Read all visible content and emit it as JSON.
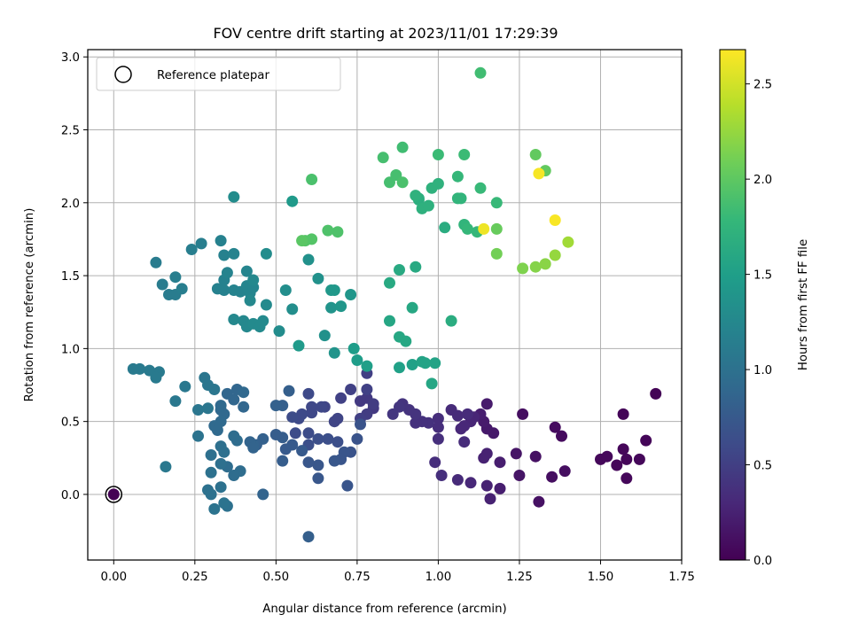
{
  "chart_data": {
    "type": "scatter",
    "title": "FOV centre drift starting at 2023/11/01 17:29:39",
    "xlabel": "Angular distance from reference (arcmin)",
    "ylabel": "Rotation from reference (arcmin)",
    "xlim": [
      -0.08,
      1.75
    ],
    "ylim": [
      -0.45,
      3.05
    ],
    "xticks": [
      0.0,
      0.25,
      0.5,
      0.75,
      1.0,
      1.25,
      1.5,
      1.75
    ],
    "xtick_labels": [
      "0.00",
      "0.25",
      "0.50",
      "0.75",
      "1.00",
      "1.25",
      "1.50",
      "1.75"
    ],
    "yticks": [
      0.0,
      0.5,
      1.0,
      1.5,
      2.0,
      2.5,
      3.0
    ],
    "ytick_labels": [
      "0.0",
      "0.5",
      "1.0",
      "1.5",
      "2.0",
      "2.5",
      "3.0"
    ],
    "grid": true,
    "legend": {
      "position": "top-left",
      "entries": [
        "Reference platepar"
      ]
    },
    "reference_point": {
      "x": 0.0,
      "y": 0.0,
      "label": "Reference platepar"
    },
    "colorbar": {
      "label": "Hours from first FF file",
      "range": [
        0.0,
        2.68
      ],
      "ticks": [
        0.0,
        0.5,
        1.0,
        1.5,
        2.0,
        2.5
      ],
      "tick_labels": [
        "0.0",
        "0.5",
        "1.0",
        "1.5",
        "2.0",
        "2.5"
      ],
      "colormap": "viridis"
    },
    "points": [
      [
        0.0,
        0.0,
        0.0
      ],
      [
        1.67,
        0.69,
        0.02
      ],
      [
        1.57,
        0.55,
        0.03
      ],
      [
        1.64,
        0.37,
        0.03
      ],
      [
        1.57,
        0.31,
        0.04
      ],
      [
        1.55,
        0.2,
        0.04
      ],
      [
        1.58,
        0.24,
        0.04
      ],
      [
        1.62,
        0.24,
        0.05
      ],
      [
        1.5,
        0.24,
        0.05
      ],
      [
        1.52,
        0.26,
        0.05
      ],
      [
        1.58,
        0.11,
        0.05
      ],
      [
        1.36,
        0.46,
        0.08
      ],
      [
        1.38,
        0.4,
        0.08
      ],
      [
        1.26,
        0.55,
        0.1
      ],
      [
        1.39,
        0.16,
        0.1
      ],
      [
        1.35,
        0.12,
        0.1
      ],
      [
        1.3,
        0.26,
        0.12
      ],
      [
        1.31,
        -0.05,
        0.12
      ],
      [
        1.24,
        0.28,
        0.15
      ],
      [
        1.25,
        0.13,
        0.15
      ],
      [
        1.17,
        0.42,
        0.18
      ],
      [
        1.15,
        0.45,
        0.18
      ],
      [
        1.14,
        0.5,
        0.2
      ],
      [
        1.15,
        0.62,
        0.2
      ],
      [
        1.13,
        0.55,
        0.22
      ],
      [
        1.19,
        0.22,
        0.22
      ],
      [
        1.19,
        0.04,
        0.22
      ],
      [
        1.14,
        0.25,
        0.25
      ],
      [
        1.15,
        0.28,
        0.25
      ],
      [
        1.15,
        0.06,
        0.25
      ],
      [
        1.16,
        -0.03,
        0.25
      ],
      [
        1.11,
        0.53,
        0.28
      ],
      [
        1.1,
        0.5,
        0.28
      ],
      [
        1.08,
        0.47,
        0.3
      ],
      [
        1.07,
        0.45,
        0.3
      ],
      [
        1.1,
        0.08,
        0.3
      ],
      [
        1.06,
        0.1,
        0.32
      ],
      [
        1.04,
        0.58,
        0.32
      ],
      [
        1.06,
        0.54,
        0.32
      ],
      [
        1.09,
        0.55,
        0.33
      ],
      [
        1.08,
        0.36,
        0.33
      ],
      [
        1.0,
        0.52,
        0.35
      ],
      [
        1.0,
        0.46,
        0.35
      ],
      [
        0.99,
        0.22,
        0.35
      ],
      [
        1.0,
        0.38,
        0.36
      ],
      [
        1.01,
        0.13,
        0.36
      ],
      [
        0.97,
        0.49,
        0.38
      ],
      [
        0.95,
        0.5,
        0.38
      ],
      [
        0.93,
        0.49,
        0.38
      ],
      [
        0.93,
        0.55,
        0.4
      ],
      [
        0.91,
        0.58,
        0.4
      ],
      [
        0.89,
        0.62,
        0.4
      ],
      [
        0.88,
        0.6,
        0.42
      ],
      [
        0.86,
        0.55,
        0.42
      ],
      [
        0.8,
        0.59,
        0.45
      ],
      [
        0.78,
        0.66,
        0.45
      ],
      [
        0.76,
        0.64,
        0.45
      ],
      [
        0.8,
        0.62,
        0.48
      ],
      [
        0.78,
        0.55,
        0.48
      ],
      [
        0.76,
        0.52,
        0.5
      ],
      [
        0.78,
        0.83,
        0.5
      ],
      [
        0.78,
        0.72,
        0.52
      ],
      [
        0.73,
        0.72,
        0.52
      ],
      [
        0.7,
        0.66,
        0.52
      ],
      [
        0.69,
        0.52,
        0.55
      ],
      [
        0.68,
        0.5,
        0.55
      ],
      [
        0.65,
        0.6,
        0.55
      ],
      [
        0.64,
        0.6,
        0.58
      ],
      [
        0.61,
        0.6,
        0.58
      ],
      [
        0.61,
        0.56,
        0.58
      ],
      [
        0.6,
        0.69,
        0.6
      ],
      [
        0.58,
        0.55,
        0.6
      ],
      [
        0.57,
        0.52,
        0.6
      ],
      [
        0.55,
        0.53,
        0.62
      ],
      [
        0.56,
        0.42,
        0.62
      ],
      [
        0.6,
        0.42,
        0.62
      ],
      [
        0.6,
        0.34,
        0.65
      ],
      [
        0.63,
        0.38,
        0.65
      ],
      [
        0.66,
        0.38,
        0.65
      ],
      [
        0.69,
        0.36,
        0.65
      ],
      [
        0.75,
        0.38,
        0.68
      ],
      [
        0.76,
        0.48,
        0.68
      ],
      [
        0.73,
        0.29,
        0.68
      ],
      [
        0.71,
        0.29,
        0.7
      ],
      [
        0.7,
        0.24,
        0.7
      ],
      [
        0.72,
        0.06,
        0.7
      ],
      [
        0.68,
        0.23,
        0.72
      ],
      [
        0.63,
        0.2,
        0.72
      ],
      [
        0.63,
        0.11,
        0.72
      ],
      [
        0.6,
        0.22,
        0.72
      ],
      [
        0.58,
        0.3,
        0.75
      ],
      [
        0.55,
        0.34,
        0.75
      ],
      [
        0.53,
        0.31,
        0.75
      ],
      [
        0.52,
        0.39,
        0.78
      ],
      [
        0.5,
        0.41,
        0.78
      ],
      [
        0.52,
        0.23,
        0.78
      ],
      [
        0.6,
        -0.29,
        0.8
      ],
      [
        0.54,
        0.71,
        0.8
      ],
      [
        0.52,
        0.61,
        0.8
      ],
      [
        0.5,
        0.61,
        0.82
      ],
      [
        0.46,
        0.38,
        0.82
      ],
      [
        0.44,
        0.34,
        0.82
      ],
      [
        0.43,
        0.34,
        0.85
      ],
      [
        0.42,
        0.36,
        0.85
      ],
      [
        0.43,
        0.32,
        0.85
      ],
      [
        0.46,
        0.0,
        0.85
      ],
      [
        0.4,
        0.6,
        0.88
      ],
      [
        0.37,
        0.65,
        0.88
      ],
      [
        0.35,
        0.69,
        0.88
      ],
      [
        0.38,
        0.72,
        0.88
      ],
      [
        0.4,
        0.7,
        0.9
      ],
      [
        0.34,
        0.55,
        0.9
      ],
      [
        0.33,
        0.58,
        0.9
      ],
      [
        0.33,
        0.61,
        0.92
      ],
      [
        0.33,
        0.5,
        0.92
      ],
      [
        0.31,
        0.47,
        0.92
      ],
      [
        0.32,
        0.44,
        0.92
      ],
      [
        0.38,
        0.37,
        0.95
      ],
      [
        0.37,
        0.4,
        0.95
      ],
      [
        0.39,
        0.16,
        0.95
      ],
      [
        0.37,
        0.13,
        0.95
      ],
      [
        0.35,
        0.19,
        0.95
      ],
      [
        0.34,
        0.29,
        0.98
      ],
      [
        0.33,
        0.33,
        0.98
      ],
      [
        0.33,
        0.21,
        0.98
      ],
      [
        0.3,
        0.27,
        0.98
      ],
      [
        0.3,
        0.15,
        1.0
      ],
      [
        0.29,
        0.03,
        1.0
      ],
      [
        0.3,
        0.0,
        1.0
      ],
      [
        0.33,
        0.05,
        1.0
      ],
      [
        0.35,
        -0.08,
        1.0
      ],
      [
        0.34,
        -0.06,
        1.02
      ],
      [
        0.31,
        -0.1,
        1.02
      ],
      [
        0.26,
        0.4,
        1.02
      ],
      [
        0.31,
        0.72,
        1.05
      ],
      [
        0.29,
        0.75,
        1.05
      ],
      [
        0.28,
        0.8,
        1.05
      ],
      [
        0.26,
        0.58,
        1.05
      ],
      [
        0.29,
        0.59,
        1.05
      ],
      [
        0.22,
        0.74,
        1.08
      ],
      [
        0.19,
        0.64,
        1.08
      ],
      [
        0.16,
        0.19,
        1.08
      ],
      [
        0.14,
        0.84,
        1.1
      ],
      [
        0.11,
        0.85,
        1.1
      ],
      [
        0.13,
        0.8,
        1.1
      ],
      [
        0.08,
        0.86,
        1.1
      ],
      [
        0.06,
        0.86,
        1.1
      ],
      [
        0.13,
        1.59,
        1.12
      ],
      [
        0.15,
        1.44,
        1.12
      ],
      [
        0.17,
        1.37,
        1.12
      ],
      [
        0.19,
        1.37,
        1.12
      ],
      [
        0.19,
        1.49,
        1.15
      ],
      [
        0.21,
        1.41,
        1.15
      ],
      [
        0.24,
        1.68,
        1.15
      ],
      [
        0.27,
        1.72,
        1.15
      ],
      [
        0.33,
        1.74,
        1.18
      ],
      [
        0.34,
        1.64,
        1.18
      ],
      [
        0.32,
        1.41,
        1.18
      ],
      [
        0.34,
        1.4,
        1.18
      ],
      [
        0.34,
        1.47,
        1.18
      ],
      [
        0.35,
        1.52,
        1.2
      ],
      [
        0.37,
        1.65,
        1.2
      ],
      [
        0.37,
        1.4,
        1.2
      ],
      [
        0.39,
        1.39,
        1.2
      ],
      [
        0.41,
        1.43,
        1.22
      ],
      [
        0.41,
        1.53,
        1.22
      ],
      [
        0.42,
        1.38,
        1.22
      ],
      [
        0.43,
        1.42,
        1.22
      ],
      [
        0.43,
        1.47,
        1.25
      ],
      [
        0.42,
        1.33,
        1.25
      ],
      [
        0.37,
        1.2,
        1.25
      ],
      [
        0.4,
        1.19,
        1.25
      ],
      [
        0.41,
        1.15,
        1.25
      ],
      [
        0.43,
        1.17,
        1.28
      ],
      [
        0.45,
        1.15,
        1.28
      ],
      [
        0.46,
        1.19,
        1.28
      ],
      [
        0.47,
        1.3,
        1.28
      ],
      [
        0.47,
        1.65,
        1.3
      ],
      [
        0.37,
        2.04,
        1.3
      ],
      [
        0.51,
        1.12,
        1.3
      ],
      [
        0.53,
        1.4,
        1.32
      ],
      [
        0.55,
        1.27,
        1.32
      ],
      [
        0.6,
        1.61,
        1.35
      ],
      [
        0.63,
        1.48,
        1.35
      ],
      [
        0.65,
        1.09,
        1.35
      ],
      [
        0.68,
        0.97,
        1.38
      ],
      [
        0.67,
        1.28,
        1.38
      ],
      [
        0.7,
        1.29,
        1.4
      ],
      [
        0.73,
        1.37,
        1.4
      ],
      [
        0.67,
        1.4,
        1.42
      ],
      [
        0.68,
        1.4,
        1.42
      ],
      [
        0.57,
        1.02,
        1.45
      ],
      [
        0.55,
        2.01,
        1.45
      ],
      [
        0.74,
        1.0,
        1.48
      ],
      [
        0.75,
        0.92,
        1.48
      ],
      [
        0.78,
        0.88,
        1.5
      ],
      [
        0.88,
        0.87,
        1.52
      ],
      [
        0.92,
        0.89,
        1.52
      ],
      [
        0.95,
        0.91,
        1.55
      ],
      [
        0.96,
        0.9,
        1.55
      ],
      [
        0.99,
        0.9,
        1.55
      ],
      [
        0.98,
        0.76,
        1.58
      ],
      [
        0.85,
        1.19,
        1.58
      ],
      [
        0.88,
        1.08,
        1.6
      ],
      [
        0.9,
        1.05,
        1.6
      ],
      [
        0.92,
        1.28,
        1.6
      ],
      [
        0.85,
        1.45,
        1.62
      ],
      [
        0.88,
        1.54,
        1.62
      ],
      [
        0.93,
        1.56,
        1.62
      ],
      [
        1.04,
        1.19,
        1.65
      ],
      [
        1.02,
        1.83,
        1.65
      ],
      [
        0.94,
        2.02,
        1.68
      ],
      [
        0.94,
        2.03,
        1.68
      ],
      [
        0.95,
        1.96,
        1.7
      ],
      [
        0.97,
        1.98,
        1.7
      ],
      [
        0.93,
        2.05,
        1.72
      ],
      [
        0.98,
        2.1,
        1.72
      ],
      [
        1.0,
        2.13,
        1.72
      ],
      [
        1.06,
        2.03,
        1.75
      ],
      [
        1.07,
        2.03,
        1.75
      ],
      [
        1.08,
        1.85,
        1.75
      ],
      [
        1.09,
        1.82,
        1.78
      ],
      [
        1.12,
        1.8,
        1.78
      ],
      [
        1.06,
        2.18,
        1.78
      ],
      [
        1.13,
        2.1,
        1.8
      ],
      [
        1.18,
        2.0,
        1.8
      ],
      [
        1.08,
        2.33,
        1.82
      ],
      [
        1.0,
        2.33,
        1.82
      ],
      [
        1.13,
        2.89,
        1.85
      ],
      [
        0.89,
        2.38,
        1.85
      ],
      [
        0.83,
        2.31,
        1.88
      ],
      [
        0.85,
        2.14,
        1.88
      ],
      [
        0.87,
        2.19,
        1.88
      ],
      [
        0.89,
        2.14,
        1.9
      ],
      [
        0.61,
        2.16,
        1.9
      ],
      [
        0.69,
        1.8,
        1.92
      ],
      [
        0.66,
        1.81,
        1.92
      ],
      [
        0.59,
        1.74,
        1.95
      ],
      [
        0.61,
        1.75,
        1.95
      ],
      [
        0.58,
        1.74,
        1.98
      ],
      [
        1.3,
        2.33,
        2.02
      ],
      [
        1.33,
        2.22,
        2.02
      ],
      [
        1.18,
        1.82,
        2.05
      ],
      [
        1.18,
        1.65,
        2.1
      ],
      [
        1.26,
        1.55,
        2.15
      ],
      [
        1.3,
        1.56,
        2.18
      ],
      [
        1.33,
        1.58,
        2.2
      ],
      [
        1.36,
        1.64,
        2.25
      ],
      [
        1.4,
        1.73,
        2.3
      ],
      [
        1.14,
        1.82,
        2.62
      ],
      [
        1.31,
        2.2,
        2.65
      ],
      [
        1.36,
        1.88,
        2.66
      ]
    ]
  }
}
